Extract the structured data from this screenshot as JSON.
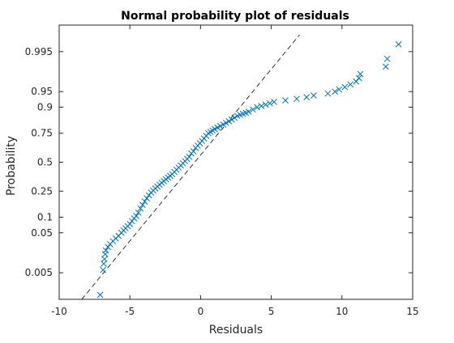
{
  "colors": {
    "marker": "#0072BD",
    "reference_line": "#000000",
    "axes": "#262626"
  },
  "chart_data": {
    "type": "scatter",
    "title": "Normal probability plot of residuals",
    "xlabel": "Residuals",
    "ylabel": "Probability",
    "xlim": [
      -10,
      15
    ],
    "x_ticks": [
      -10,
      -5,
      0,
      5,
      10,
      15
    ],
    "y_scale": "normal-probability",
    "y_ticks": [
      0.005,
      0.05,
      0.1,
      0.25,
      0.5,
      0.75,
      0.9,
      0.95,
      0.995
    ],
    "y_tick_labels": [
      "0.005",
      "0.05",
      "0.1",
      "0.25",
      "0.5",
      "0.75",
      "0.9",
      "0.95",
      "0.995"
    ],
    "grid": false,
    "marker": "x",
    "reference_line": {
      "style": "dashed",
      "points": [
        {
          "x": -8.4,
          "p": 0.0007
        },
        {
          "x": 7.0,
          "p": 0.9985
        }
      ]
    },
    "series": [
      {
        "x": [
          -7.1,
          -6.9,
          -6.85,
          -6.8,
          -6.75,
          -6.7,
          -6.55,
          -6.4,
          -6.2,
          -6.0,
          -5.8,
          -5.6,
          -5.45,
          -5.3,
          -5.15,
          -5.0,
          -4.85,
          -4.7,
          -4.55,
          -4.4,
          -4.25,
          -4.1,
          -3.95,
          -3.8,
          -3.65,
          -3.5,
          -3.35,
          -3.2,
          -3.05,
          -2.9,
          -2.75,
          -2.6,
          -2.45,
          -2.3,
          -2.15,
          -2.0,
          -1.85,
          -1.7,
          -1.55,
          -1.4,
          -1.25,
          -1.1,
          -0.95,
          -0.8,
          -0.65,
          -0.5,
          -0.35,
          -0.2,
          -0.05,
          0.1,
          0.25,
          0.4,
          0.55,
          0.7,
          0.85,
          1.0,
          1.2,
          1.4,
          1.6,
          1.8,
          2.0,
          2.2,
          2.4,
          2.6,
          2.8,
          3.0,
          3.2,
          3.4,
          3.7,
          4.0,
          4.3,
          4.6,
          4.9,
          5.2,
          6.0,
          6.8,
          7.5,
          8.0,
          9.0,
          9.5,
          9.8,
          10.2,
          10.6,
          11.0,
          11.2,
          11.3,
          13.1,
          13.2,
          14.0
        ],
        "p": [
          0.001,
          0.006,
          0.009,
          0.012,
          0.016,
          0.02,
          0.024,
          0.028,
          0.033,
          0.038,
          0.043,
          0.05,
          0.056,
          0.062,
          0.068,
          0.075,
          0.085,
          0.095,
          0.105,
          0.12,
          0.14,
          0.16,
          0.18,
          0.2,
          0.22,
          0.24,
          0.255,
          0.27,
          0.285,
          0.3,
          0.315,
          0.33,
          0.345,
          0.36,
          0.375,
          0.39,
          0.41,
          0.43,
          0.45,
          0.47,
          0.49,
          0.51,
          0.53,
          0.55,
          0.58,
          0.6,
          0.63,
          0.65,
          0.67,
          0.69,
          0.71,
          0.73,
          0.75,
          0.76,
          0.77,
          0.78,
          0.79,
          0.8,
          0.81,
          0.82,
          0.83,
          0.84,
          0.85,
          0.86,
          0.865,
          0.87,
          0.875,
          0.88,
          0.89,
          0.9,
          0.905,
          0.91,
          0.915,
          0.92,
          0.925,
          0.93,
          0.935,
          0.94,
          0.945,
          0.95,
          0.955,
          0.96,
          0.965,
          0.97,
          0.975,
          0.98,
          0.987,
          0.992,
          0.997
        ]
      }
    ]
  }
}
